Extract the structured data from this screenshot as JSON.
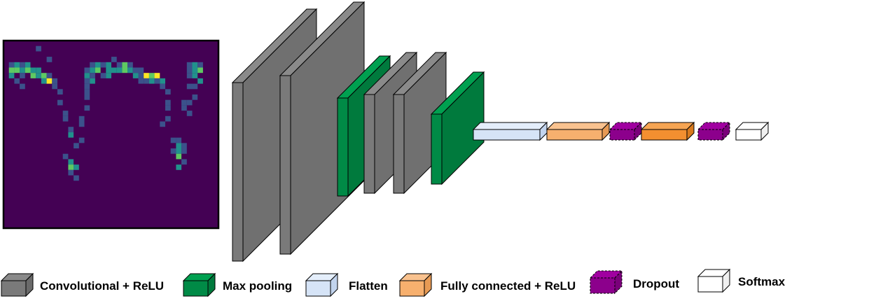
{
  "colors": {
    "background": "#ffffff",
    "conv": "#7a7a7a",
    "pool": "#008a46",
    "flatten": "#d6e4f7",
    "fc_light": "#f7b06e",
    "fc_dark": "#f38f30",
    "dropout": "#8c008c",
    "softmax": "#ffffff",
    "heatmap_bg": "#440154",
    "heatmap_low": "#3b528b",
    "heatmap_mid": "#21918c",
    "heatmap_high": "#5ec962",
    "heatmap_peak": "#fde725"
  },
  "input_image": {
    "description_icon": "spectrogram-heatmap-icon"
  },
  "network": {
    "layers": [
      {
        "kind": "conv"
      },
      {
        "kind": "conv"
      },
      {
        "kind": "pool"
      },
      {
        "kind": "conv"
      },
      {
        "kind": "conv"
      },
      {
        "kind": "pool"
      },
      {
        "kind": "flatten"
      },
      {
        "kind": "fc"
      },
      {
        "kind": "dropout"
      },
      {
        "kind": "fc"
      },
      {
        "kind": "dropout"
      },
      {
        "kind": "softmax"
      }
    ]
  },
  "legend": {
    "items": [
      {
        "key": "conv",
        "label": "Convolutional + ReLU"
      },
      {
        "key": "pool",
        "label": "Max pooling"
      },
      {
        "key": "flatten",
        "label": "Flatten"
      },
      {
        "key": "fc",
        "label": "Fully connected + ReLU"
      },
      {
        "key": "dropout",
        "label": "Dropout"
      },
      {
        "key": "softmax",
        "label": "Softmax"
      }
    ]
  }
}
